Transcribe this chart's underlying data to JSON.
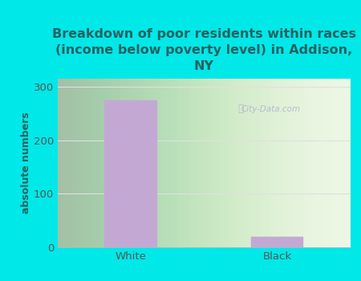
{
  "title": "Breakdown of poor residents within races\n(income below poverty level) in Addison,\nNY",
  "categories": [
    "White",
    "Black"
  ],
  "values": [
    275,
    20
  ],
  "bar_color": "#c4a8d4",
  "bar_edge_color": "#c4a8d4",
  "ylabel": "absolute numbers",
  "ylim": [
    0,
    315
  ],
  "yticks": [
    0,
    100,
    200,
    300
  ],
  "background_color": "#00e8e8",
  "plot_bg_color_center": "#f0f8e8",
  "plot_bg_color_edge": "#d8f0d0",
  "title_color": "#2a6060",
  "axis_label_color": "#555555",
  "tick_label_color": "#555555",
  "grid_color": "#e0e0e0",
  "watermark_text": "City-Data.com",
  "title_fontsize": 11.5,
  "ylabel_fontsize": 9,
  "tick_fontsize": 9.5,
  "bar_positions": [
    0.25,
    0.75
  ],
  "bar_width": 0.18
}
